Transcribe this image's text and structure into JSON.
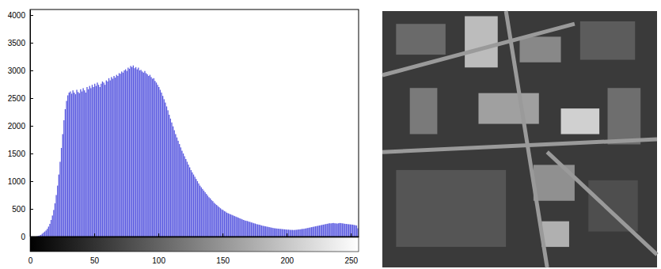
{
  "chart_data": {
    "type": "histogram",
    "bins": [
      0,
      1,
      2,
      3,
      4,
      5,
      6,
      7,
      8,
      9,
      10,
      11,
      12,
      13,
      14,
      15,
      16,
      17,
      18,
      19,
      20,
      21,
      22,
      23,
      24,
      25,
      26,
      27,
      28,
      29,
      30,
      31,
      32,
      33,
      34,
      35,
      36,
      37,
      38,
      39,
      40,
      41,
      42,
      43,
      44,
      45,
      46,
      47,
      48,
      49,
      50,
      51,
      52,
      53,
      54,
      55,
      56,
      57,
      58,
      59,
      60,
      61,
      62,
      63,
      64,
      65,
      66,
      67,
      68,
      69,
      70,
      71,
      72,
      73,
      74,
      75,
      76,
      77,
      78,
      79,
      80,
      81,
      82,
      83,
      84,
      85,
      86,
      87,
      88,
      89,
      90,
      91,
      92,
      93,
      94,
      95,
      96,
      97,
      98,
      99,
      100,
      101,
      102,
      103,
      104,
      105,
      106,
      107,
      108,
      109,
      110,
      111,
      112,
      113,
      114,
      115,
      116,
      117,
      118,
      119,
      120,
      121,
      122,
      123,
      124,
      125,
      126,
      127,
      128,
      129,
      130,
      131,
      132,
      133,
      134,
      135,
      136,
      137,
      138,
      139,
      140,
      141,
      142,
      143,
      144,
      145,
      146,
      147,
      148,
      149,
      150,
      151,
      152,
      153,
      154,
      155,
      156,
      157,
      158,
      159,
      160,
      161,
      162,
      163,
      164,
      165,
      166,
      167,
      168,
      169,
      170,
      171,
      172,
      173,
      174,
      175,
      176,
      177,
      178,
      179,
      180,
      181,
      182,
      183,
      184,
      185,
      186,
      187,
      188,
      189,
      190,
      191,
      192,
      193,
      194,
      195,
      196,
      197,
      198,
      199,
      200,
      201,
      202,
      203,
      204,
      205,
      206,
      207,
      208,
      209,
      210,
      211,
      212,
      213,
      214,
      215,
      216,
      217,
      218,
      219,
      220,
      221,
      222,
      223,
      224,
      225,
      226,
      227,
      228,
      229,
      230,
      231,
      232,
      233,
      234,
      235,
      236,
      237,
      238,
      239,
      240,
      241,
      242,
      243,
      244,
      245,
      246,
      247,
      248,
      249,
      250,
      251,
      252,
      253,
      254,
      255,
      256
    ],
    "values": [
      0,
      0,
      0,
      0,
      0,
      5,
      10,
      20,
      30,
      50,
      70,
      90,
      110,
      140,
      180,
      230,
      300,
      380,
      480,
      600,
      750,
      920,
      1120,
      1350,
      1600,
      1850,
      2100,
      2300,
      2450,
      2550,
      2600,
      2620,
      2580,
      2640,
      2600,
      2570,
      2650,
      2610,
      2590,
      2660,
      2620,
      2680,
      2640,
      2600,
      2700,
      2660,
      2720,
      2680,
      2740,
      2700,
      2760,
      2720,
      2780,
      2740,
      2700,
      2760,
      2800,
      2780,
      2740,
      2820,
      2800,
      2860,
      2820,
      2880,
      2850,
      2900,
      2870,
      2920,
      2900,
      2950,
      2940,
      2980,
      2960,
      3000,
      3020,
      2990,
      3050,
      3030,
      3080,
      3060,
      3090,
      3040,
      3060,
      3020,
      3050,
      3000,
      3010,
      2980,
      2960,
      2990,
      2950,
      2930,
      2900,
      2920,
      2880,
      2850,
      2860,
      2810,
      2780,
      2740,
      2700,
      2650,
      2600,
      2540,
      2480,
      2420,
      2350,
      2280,
      2200,
      2130,
      2060,
      1990,
      1920,
      1850,
      1790,
      1730,
      1670,
      1610,
      1550,
      1500,
      1450,
      1400,
      1350,
      1300,
      1250,
      1200,
      1160,
      1120,
      1080,
      1040,
      1000,
      960,
      920,
      890,
      860,
      830,
      800,
      770,
      740,
      710,
      690,
      660,
      640,
      610,
      590,
      570,
      550,
      530,
      510,
      490,
      480,
      460,
      450,
      430,
      420,
      410,
      400,
      390,
      380,
      370,
      360,
      350,
      340,
      330,
      320,
      310,
      300,
      290,
      285,
      280,
      270,
      265,
      255,
      250,
      240,
      235,
      225,
      220,
      215,
      210,
      200,
      195,
      190,
      185,
      180,
      175,
      170,
      165,
      160,
      155,
      150,
      148,
      145,
      142,
      140,
      138,
      135,
      133,
      130,
      128,
      125,
      125,
      122,
      120,
      120,
      118,
      120,
      122,
      125,
      128,
      130,
      135,
      138,
      140,
      145,
      150,
      155,
      160,
      165,
      170,
      175,
      180,
      185,
      190,
      195,
      200,
      205,
      210,
      215,
      220,
      225,
      230,
      235,
      240,
      238,
      242,
      245,
      240,
      238,
      235,
      240,
      245,
      242,
      238,
      235,
      230,
      228,
      225,
      222,
      220,
      218,
      215,
      210,
      205,
      200,
      150
    ],
    "color": "#5a5ae0",
    "xlim": [
      0,
      256
    ],
    "ylim": [
      0,
      4100
    ],
    "xticks": [
      0,
      50,
      100,
      150,
      200,
      250
    ],
    "yticks": [
      0,
      500,
      1000,
      1500,
      2000,
      2500,
      3000,
      3500,
      4000
    ]
  }
}
